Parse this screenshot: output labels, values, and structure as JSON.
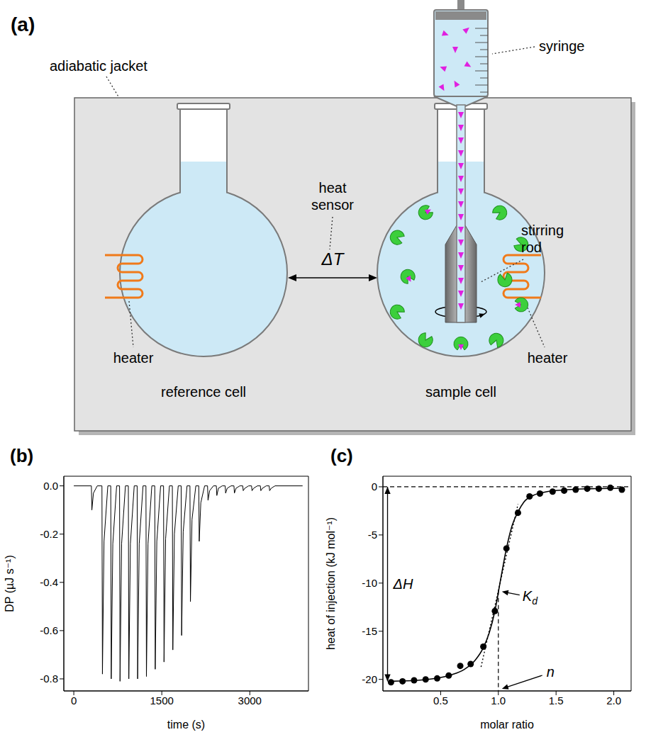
{
  "diagram": {
    "panel_label": "(a)",
    "syringe": "syringe",
    "adiabatic_jacket": "adiabatic jacket",
    "heat_sensor": "heat sensor",
    "temperature_difference": "ΔT",
    "stirring_rod": "stirring rod",
    "heater_left": "heater",
    "heater_right": "heater",
    "reference_cell": "reference cell",
    "sample_cell": "sample cell"
  },
  "chart_data": [
    {
      "panel_label": "(b)",
      "type": "line",
      "color": "#000000",
      "x_label": "time (s)",
      "y_label": "DP (µJ s⁻¹)",
      "x": [
        0,
        300,
        308,
        335,
        400,
        480,
        488,
        515,
        580,
        630,
        638,
        665,
        730,
        780,
        788,
        815,
        880,
        930,
        938,
        965,
        1030,
        1080,
        1088,
        1115,
        1180,
        1230,
        1238,
        1265,
        1330,
        1380,
        1388,
        1415,
        1480,
        1530,
        1538,
        1565,
        1630,
        1680,
        1688,
        1715,
        1780,
        1830,
        1838,
        1865,
        1930,
        1980,
        1988,
        2015,
        2080,
        2130,
        2138,
        2165,
        2230,
        2280,
        2288,
        2315,
        2380,
        2430,
        2438,
        2465,
        2530,
        2580,
        2588,
        2615,
        2680,
        2730,
        2738,
        2765,
        2830,
        2880,
        2888,
        2915,
        2980,
        3030,
        3038,
        3065,
        3130,
        3180,
        3188,
        3215,
        3280,
        3330,
        3338,
        3365,
        3430,
        3900
      ],
      "values": [
        0,
        0,
        -0.1,
        -0.03,
        0,
        0,
        -0.78,
        -0.23,
        0,
        0,
        -0.8,
        -0.24,
        0,
        0,
        -0.81,
        -0.24,
        0,
        0,
        -0.8,
        -0.24,
        0,
        0,
        -0.8,
        -0.24,
        0,
        0,
        -0.79,
        -0.24,
        0,
        0,
        -0.76,
        -0.23,
        0,
        0,
        -0.73,
        -0.22,
        0,
        0,
        -0.68,
        -0.2,
        0,
        0,
        -0.62,
        -0.19,
        0,
        0,
        -0.48,
        -0.14,
        0,
        0,
        -0.23,
        -0.07,
        0,
        0,
        -0.06,
        -0.02,
        0,
        0,
        -0.04,
        -0.01,
        0,
        0,
        -0.03,
        -0.01,
        0,
        0,
        -0.03,
        -0.01,
        0,
        0,
        -0.02,
        -0.01,
        0,
        0,
        -0.02,
        -0.01,
        0,
        0,
        -0.02,
        -0.01,
        0,
        0,
        -0.02,
        -0.01,
        0,
        0
      ],
      "xlim": [
        -170,
        4000
      ],
      "xticks": [
        0,
        1500,
        3000
      ],
      "ylim": [
        -0.85,
        0.04
      ],
      "yticks": [
        {
          "value": 0,
          "label": "0.0"
        },
        -0.2,
        -0.4,
        -0.6,
        -0.8
      ],
      "grid": false
    },
    {
      "panel_label": "(c)",
      "type": "scatter",
      "marker": "circle",
      "color": "#000000",
      "x_label": "molar ratio",
      "y_label": "heat of injection (kJ mol⁻¹)",
      "x": [
        0.07,
        0.17,
        0.27,
        0.37,
        0.47,
        0.57,
        0.67,
        0.76,
        0.87,
        0.97,
        1.07,
        1.17,
        1.27,
        1.36,
        1.47,
        1.57,
        1.67,
        1.77,
        1.87,
        1.97,
        2.07
      ],
      "values": [
        -20.3,
        -20.2,
        -20.1,
        -20.0,
        -19.9,
        -19.6,
        -18.6,
        -18.4,
        -16.6,
        -12.9,
        -6.4,
        -2.7,
        -1.0,
        -0.7,
        -0.5,
        -0.4,
        -0.3,
        -0.2,
        -0.2,
        -0.1,
        -0.3
      ],
      "fit": {
        "type": "line",
        "color": "#000000",
        "x": [
          0.07,
          0.3,
          0.5,
          0.6,
          0.7,
          0.8,
          0.87,
          0.92,
          0.97,
          1.02,
          1.07,
          1.12,
          1.17,
          1.22,
          1.3,
          1.4,
          1.6,
          1.8,
          2.07
        ],
        "values": [
          -20.2,
          -20.1,
          -19.8,
          -19.5,
          -19.0,
          -18.0,
          -16.7,
          -15.2,
          -12.9,
          -9.6,
          -6.4,
          -4.0,
          -2.6,
          -1.6,
          -0.9,
          -0.55,
          -0.3,
          -0.2,
          -0.15
        ]
      },
      "tangent": {
        "type": "line",
        "line_style": "dotted",
        "color": "#000000",
        "x": [
          0.85,
          1.17
        ],
        "values": [
          -18.7,
          -1.8
        ]
      },
      "baseline": {
        "line_style": "dashed",
        "y": 0
      },
      "annotations": [
        {
          "text": "ΔH",
          "x": 0.04,
          "y": [
            0,
            -20.2
          ]
        },
        {
          "text": "K",
          "subscript": "d",
          "x": 1.0,
          "y": -10.8,
          "line_style": "dashed"
        },
        {
          "text": "n",
          "x": 1.0,
          "y": -21.2
        }
      ],
      "xlim": [
        0,
        2.15
      ],
      "xticks": [
        0.5,
        {
          "value": 1,
          "label": "1.0"
        },
        1.5,
        {
          "value": 2,
          "label": "2.0"
        }
      ],
      "ylim": [
        -21.2,
        1.1
      ],
      "yticks": [
        0,
        -5,
        -10,
        -15,
        -20
      ],
      "grid": false
    }
  ]
}
